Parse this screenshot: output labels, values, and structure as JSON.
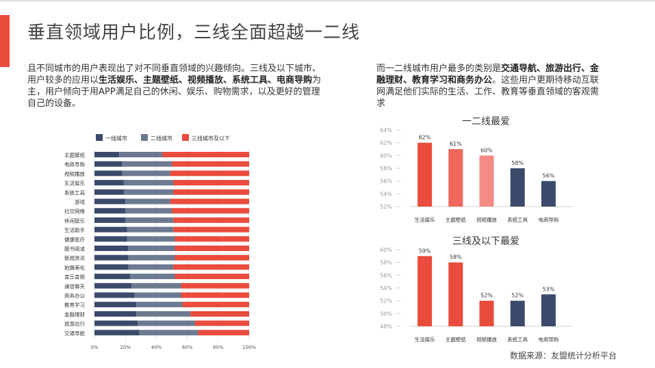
{
  "page_title": "垂直领域用户比例，三线全面超越一二线",
  "left_paragraph": {
    "p1": "且不同城市的用户表现出了对不同垂直领域的兴趣倾向。三线及以下城市、用户较多的应用以",
    "b1": "生活娱乐、主题壁纸、视频播放、系统工具、电商导购",
    "p2": "为主，用户倾向于用APP满足自己的休闲、娱乐、购物需求，以及更好的管理自己的设备。"
  },
  "right_paragraph": {
    "p1": "而一二线城市用户最多的类别是",
    "b1": "交通导航、旅游出行、金融理财、教育学习和商务办公",
    "p2": "。这些用户更期待移动互联网满足他们实际的生活、工作、教育等垂直领域的客观需求"
  },
  "source": "数据来源：友盟统计分析平台",
  "colors": {
    "tier1": "#3b4a6b",
    "tier2": "#6c7a91",
    "tier3": "#e94b3c",
    "bar_light_red": "#f0675b",
    "bar_pink": "#f48b85",
    "bar_navy": "#3b4a6b"
  },
  "chart_data": [
    {
      "type": "bar",
      "orientation": "horizontal",
      "stacked": "percent",
      "legend_position": "top",
      "categories": [
        "主题壁纸",
        "电商导购",
        "视频播放",
        "生活娱乐",
        "系统工具",
        "游戏",
        "社交网络",
        "休闲娱乐",
        "生活助手",
        "健康医疗",
        "图书阅读",
        "新闻资讯",
        "拍摄美化",
        "音乐音频",
        "通信聊天",
        "商务办公",
        "教育学习",
        "金融理财",
        "旅游出行",
        "交通导航"
      ],
      "series": [
        {
          "name": "一线城市",
          "values": [
            16,
            18,
            18,
            19,
            19,
            20,
            20,
            20,
            21,
            21,
            22,
            22,
            22,
            23,
            24,
            26,
            27,
            27,
            28,
            29
          ]
        },
        {
          "name": "二线城市",
          "values": [
            28,
            32,
            31,
            32,
            32,
            29,
            30,
            31,
            30,
            31,
            30,
            30,
            29,
            29,
            32,
            30,
            30,
            35,
            37,
            38
          ]
        },
        {
          "name": "三线城市及以下",
          "values": [
            56,
            50,
            51,
            49,
            49,
            51,
            50,
            49,
            49,
            48,
            48,
            48,
            49,
            48,
            44,
            44,
            43,
            38,
            35,
            33
          ]
        }
      ],
      "ticks": [
        "0%",
        "20%",
        "40%",
        "60%",
        "80%",
        "100%"
      ],
      "xlim": [
        0,
        100
      ]
    },
    {
      "type": "bar",
      "title": "一二线最爱",
      "categories": [
        "生活娱乐",
        "主题壁纸",
        "视频播放",
        "系统工具",
        "电商导购"
      ],
      "values": [
        62,
        61,
        60,
        58,
        56
      ],
      "labels": [
        "62%",
        "61%",
        "60%",
        "58%",
        "56%"
      ],
      "ylim": [
        52,
        64
      ],
      "yticks": [
        52,
        54,
        56,
        58,
        60,
        62,
        64
      ],
      "ytick_labels": [
        "52%",
        "54%",
        "56%",
        "58%",
        "60%",
        "62%",
        "64%"
      ]
    },
    {
      "type": "bar",
      "title": "三线及以下最爱",
      "categories": [
        "生活娱乐",
        "主题壁纸",
        "视频播放",
        "系统工具",
        "电商导购"
      ],
      "values": [
        59,
        58,
        52,
        52,
        53
      ],
      "labels": [
        "59%",
        "58%",
        "52%",
        "52%",
        "53%"
      ],
      "ylim": [
        48,
        60
      ],
      "yticks": [
        48,
        50,
        52,
        54,
        56,
        58,
        60
      ],
      "ytick_labels": [
        "48%",
        "50%",
        "52%",
        "54%",
        "56%",
        "58%",
        "60%"
      ]
    }
  ]
}
